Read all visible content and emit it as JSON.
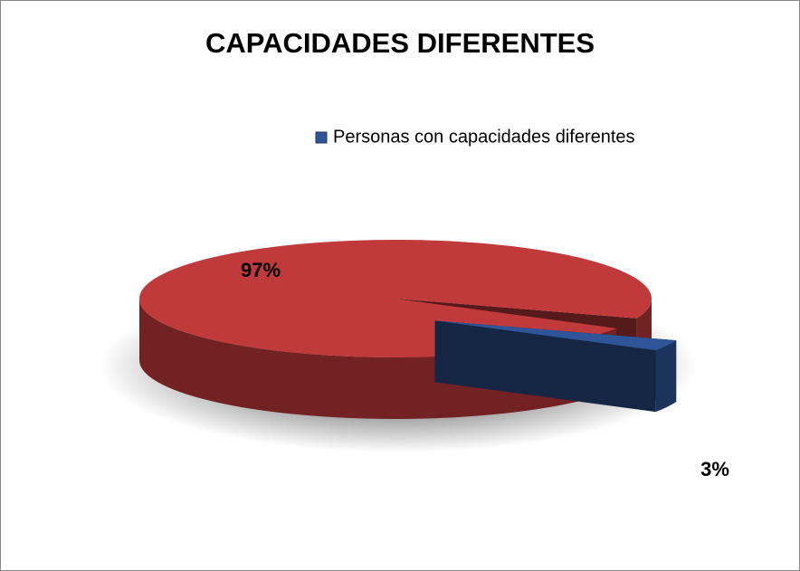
{
  "chart_data": {
    "type": "pie3d",
    "title": "CAPACIDADES DIFERENTES",
    "categories": [
      null,
      "Personas con capacidades diferentes"
    ],
    "values": [
      97,
      3
    ],
    "value_labels": [
      "97%",
      "3%"
    ],
    "colors": [
      "#c0393b",
      "#2e5597"
    ],
    "legend": "top-right"
  }
}
